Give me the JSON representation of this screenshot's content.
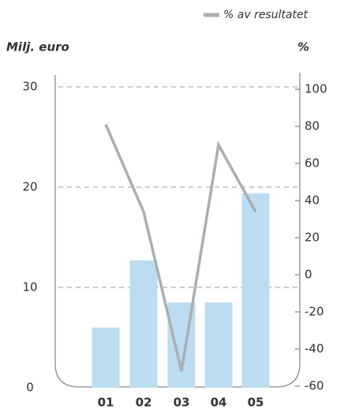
{
  "chart_data": {
    "type": "bar",
    "ylabel": "Milj. euro",
    "y2label": "%",
    "categories": [
      "01",
      "02",
      "03",
      "04",
      "05"
    ],
    "series": [
      {
        "type": "bar",
        "color": "#bcdcf2",
        "values": [
          6.0,
          12.7,
          8.5,
          8.5,
          19.4
        ]
      },
      {
        "type": "line",
        "name": "% av resultatet",
        "axis": "y2",
        "color": "#a9aeb3",
        "values": [
          81,
          34,
          -52,
          70,
          34
        ]
      }
    ],
    "ylim": [
      0,
      30
    ],
    "yticks": [
      0,
      10,
      20,
      30
    ],
    "y2lim": [
      -60,
      100
    ],
    "y2ticks": [
      -60,
      -40,
      -20,
      0,
      20,
      40,
      60,
      80,
      100
    ],
    "grid": true
  }
}
